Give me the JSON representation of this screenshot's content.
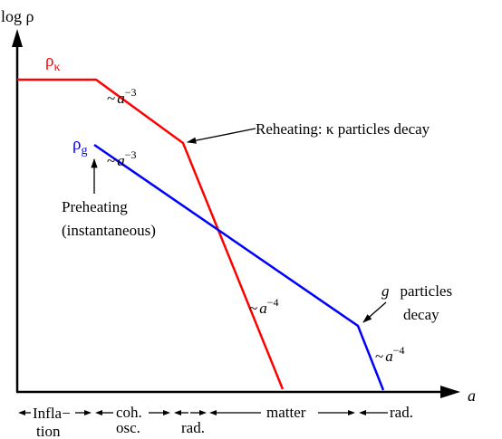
{
  "diagram": {
    "y_axis_label": "log ρ",
    "x_axis_label": "a",
    "rho_kappa_label": "ρ",
    "rho_kappa_sub": "κ",
    "rho_g_label": "ρ",
    "rho_g_sub": "g",
    "tilde": "~",
    "a_symbol": "a",
    "exp_minus3": "−3",
    "exp_minus4": "−4",
    "reheating_label": "Reheating:  κ particles decay",
    "preheating_line1": "Preheating",
    "preheating_line2": "(instantaneous)",
    "g_decay_symbol": "g",
    "g_decay_line1_rest": "particles",
    "g_decay_line2": "decay",
    "eras": {
      "inflation_1": "Infla−",
      "inflation_2": "tion",
      "coh_1": "coh.",
      "coh_2": "osc.",
      "rad1": "rad.",
      "matter": "matter",
      "rad2": "rad."
    },
    "colors": {
      "rho_kappa": "#ff0000",
      "rho_g": "#0000ff",
      "axes": "#000000"
    }
  }
}
